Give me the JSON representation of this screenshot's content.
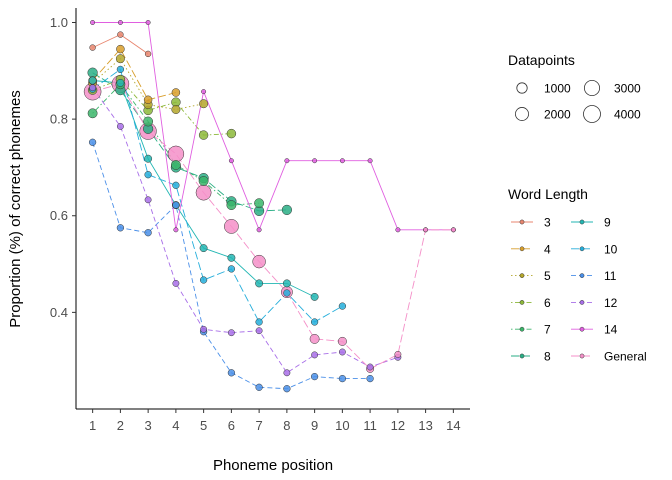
{
  "chart_data": {
    "type": "line",
    "title": "",
    "xlabel": "Phoneme position",
    "ylabel": "Proportion (%) of correct phonemes",
    "xlim": [
      0.4,
      14.6
    ],
    "ylim": [
      0.2,
      1.03
    ],
    "x_ticks": [
      "1",
      "2",
      "3",
      "4",
      "5",
      "6",
      "7",
      "8",
      "9",
      "10",
      "11",
      "12",
      "13",
      "14"
    ],
    "y_ticks": [
      "0.4",
      "0.6",
      "0.8",
      "1.0"
    ],
    "grid": false,
    "size_legend": {
      "title": "Datapoints",
      "entries": [
        {
          "label": "1000",
          "value": 1000
        },
        {
          "label": "2000",
          "value": 2000
        },
        {
          "label": "3000",
          "value": 3000
        },
        {
          "label": "4000",
          "value": 4000
        }
      ]
    },
    "color_legend": {
      "title": "Word Length",
      "placement": "right"
    },
    "series": [
      {
        "name": "3",
        "color": "#E8866F",
        "dash": "solid",
        "points": [
          {
            "x": 1,
            "y": 0.948,
            "n": 100
          },
          {
            "x": 2,
            "y": 0.975,
            "n": 100
          },
          {
            "x": 3,
            "y": 0.935,
            "n": 100
          }
        ]
      },
      {
        "name": "4",
        "color": "#D89E2A",
        "dash": "longdash",
        "points": [
          {
            "x": 1,
            "y": 0.88,
            "n": 400
          },
          {
            "x": 2,
            "y": 0.945,
            "n": 400
          },
          {
            "x": 3,
            "y": 0.84,
            "n": 400
          },
          {
            "x": 4,
            "y": 0.855,
            "n": 400
          }
        ]
      },
      {
        "name": "5",
        "color": "#B4A62A",
        "dash": "dotted",
        "points": [
          {
            "x": 1,
            "y": 0.875,
            "n": 500
          },
          {
            "x": 2,
            "y": 0.925,
            "n": 500
          },
          {
            "x": 3,
            "y": 0.83,
            "n": 500
          },
          {
            "x": 4,
            "y": 0.82,
            "n": 500
          },
          {
            "x": 5,
            "y": 0.832,
            "n": 500
          }
        ]
      },
      {
        "name": "6",
        "color": "#8CB83A",
        "dash": "dotdash",
        "points": [
          {
            "x": 1,
            "y": 0.86,
            "n": 600
          },
          {
            "x": 2,
            "y": 0.882,
            "n": 600
          },
          {
            "x": 3,
            "y": 0.818,
            "n": 600
          },
          {
            "x": 4,
            "y": 0.835,
            "n": 600
          },
          {
            "x": 5,
            "y": 0.767,
            "n": 600
          },
          {
            "x": 6,
            "y": 0.77,
            "n": 600
          }
        ]
      },
      {
        "name": "7",
        "color": "#3BB56A",
        "dash": "dotdash",
        "points": [
          {
            "x": 1,
            "y": 0.812,
            "n": 700
          },
          {
            "x": 2,
            "y": 0.872,
            "n": 700
          },
          {
            "x": 3,
            "y": 0.795,
            "n": 700
          },
          {
            "x": 4,
            "y": 0.705,
            "n": 700
          },
          {
            "x": 5,
            "y": 0.672,
            "n": 700
          },
          {
            "x": 6,
            "y": 0.622,
            "n": 700
          },
          {
            "x": 7,
            "y": 0.626,
            "n": 700
          }
        ]
      },
      {
        "name": "8",
        "color": "#2AAE85",
        "dash": "longdash",
        "points": [
          {
            "x": 1,
            "y": 0.896,
            "n": 800
          },
          {
            "x": 2,
            "y": 0.86,
            "n": 800
          },
          {
            "x": 3,
            "y": 0.78,
            "n": 800
          },
          {
            "x": 4,
            "y": 0.7,
            "n": 800
          },
          {
            "x": 5,
            "y": 0.678,
            "n": 800
          },
          {
            "x": 6,
            "y": 0.63,
            "n": 800
          },
          {
            "x": 7,
            "y": 0.61,
            "n": 800
          },
          {
            "x": 8,
            "y": 0.612,
            "n": 800
          }
        ]
      },
      {
        "name": "9",
        "color": "#22B6B3",
        "dash": "solid",
        "points": [
          {
            "x": 1,
            "y": 0.88,
            "n": 300
          },
          {
            "x": 2,
            "y": 0.875,
            "n": 300
          },
          {
            "x": 3,
            "y": 0.718,
            "n": 300
          },
          {
            "x": 4,
            "y": 0.622,
            "n": 300
          },
          {
            "x": 5,
            "y": 0.533,
            "n": 300
          },
          {
            "x": 6,
            "y": 0.513,
            "n": 300
          },
          {
            "x": 7,
            "y": 0.46,
            "n": 300
          },
          {
            "x": 8,
            "y": 0.46,
            "n": 300
          },
          {
            "x": 9,
            "y": 0.432,
            "n": 300
          }
        ]
      },
      {
        "name": "10",
        "color": "#25AEDB",
        "dash": "longdash",
        "points": [
          {
            "x": 1,
            "y": 0.862,
            "n": 200
          },
          {
            "x": 2,
            "y": 0.903,
            "n": 200
          },
          {
            "x": 3,
            "y": 0.685,
            "n": 200
          },
          {
            "x": 4,
            "y": 0.663,
            "n": 200
          },
          {
            "x": 5,
            "y": 0.467,
            "n": 200
          },
          {
            "x": 6,
            "y": 0.49,
            "n": 200
          },
          {
            "x": 7,
            "y": 0.38,
            "n": 200
          },
          {
            "x": 8,
            "y": 0.44,
            "n": 200
          },
          {
            "x": 9,
            "y": 0.38,
            "n": 200
          },
          {
            "x": 10,
            "y": 0.413,
            "n": 200
          }
        ]
      },
      {
        "name": "11",
        "color": "#4A8FE8",
        "dash": "dashed",
        "points": [
          {
            "x": 1,
            "y": 0.752,
            "n": 200
          },
          {
            "x": 2,
            "y": 0.575,
            "n": 200
          },
          {
            "x": 3,
            "y": 0.565,
            "n": 200
          },
          {
            "x": 4,
            "y": 0.622,
            "n": 200
          },
          {
            "x": 5,
            "y": 0.36,
            "n": 200
          },
          {
            "x": 6,
            "y": 0.275,
            "n": 200
          },
          {
            "x": 7,
            "y": 0.245,
            "n": 200
          },
          {
            "x": 8,
            "y": 0.242,
            "n": 200
          },
          {
            "x": 9,
            "y": 0.267,
            "n": 200
          },
          {
            "x": 10,
            "y": 0.263,
            "n": 200
          },
          {
            "x": 11,
            "y": 0.263,
            "n": 200
          }
        ]
      },
      {
        "name": "12",
        "color": "#A86EE8",
        "dash": "dashed",
        "points": [
          {
            "x": 1,
            "y": 0.865,
            "n": 150
          },
          {
            "x": 2,
            "y": 0.785,
            "n": 150
          },
          {
            "x": 3,
            "y": 0.633,
            "n": 150
          },
          {
            "x": 4,
            "y": 0.46,
            "n": 150
          },
          {
            "x": 5,
            "y": 0.365,
            "n": 150
          },
          {
            "x": 6,
            "y": 0.358,
            "n": 150
          },
          {
            "x": 7,
            "y": 0.362,
            "n": 150
          },
          {
            "x": 8,
            "y": 0.275,
            "n": 150
          },
          {
            "x": 9,
            "y": 0.312,
            "n": 150
          },
          {
            "x": 10,
            "y": 0.318,
            "n": 150
          },
          {
            "x": 11,
            "y": 0.287,
            "n": 150
          },
          {
            "x": 12,
            "y": 0.307,
            "n": 150
          }
        ]
      },
      {
        "name": "14",
        "color": "#E05FE0",
        "dash": "solid",
        "points": [
          {
            "x": 1,
            "y": 1.0,
            "n": 10
          },
          {
            "x": 2,
            "y": 1.0,
            "n": 10
          },
          {
            "x": 3,
            "y": 1.0,
            "n": 10
          },
          {
            "x": 4,
            "y": 0.571,
            "n": 10
          },
          {
            "x": 5,
            "y": 0.857,
            "n": 10
          },
          {
            "x": 6,
            "y": 0.714,
            "n": 10
          },
          {
            "x": 7,
            "y": 0.571,
            "n": 10
          },
          {
            "x": 8,
            "y": 0.714,
            "n": 10
          },
          {
            "x": 9,
            "y": 0.714,
            "n": 10
          },
          {
            "x": 10,
            "y": 0.714,
            "n": 10
          },
          {
            "x": 11,
            "y": 0.714,
            "n": 10
          },
          {
            "x": 12,
            "y": 0.571,
            "n": 10
          },
          {
            "x": 13,
            "y": 0.571,
            "n": 10
          },
          {
            "x": 14,
            "y": 0.571,
            "n": 10
          }
        ]
      },
      {
        "name": "General",
        "color": "#F48FC8",
        "dash": "longdash",
        "points": [
          {
            "x": 1,
            "y": 0.857,
            "n": 4000
          },
          {
            "x": 2,
            "y": 0.873,
            "n": 4000
          },
          {
            "x": 3,
            "y": 0.775,
            "n": 3800
          },
          {
            "x": 4,
            "y": 0.728,
            "n": 3400
          },
          {
            "x": 5,
            "y": 0.648,
            "n": 3000
          },
          {
            "x": 6,
            "y": 0.578,
            "n": 2500
          },
          {
            "x": 7,
            "y": 0.505,
            "n": 1900
          },
          {
            "x": 8,
            "y": 0.442,
            "n": 1300
          },
          {
            "x": 9,
            "y": 0.345,
            "n": 700
          },
          {
            "x": 10,
            "y": 0.34,
            "n": 500
          },
          {
            "x": 11,
            "y": 0.283,
            "n": 300
          },
          {
            "x": 12,
            "y": 0.313,
            "n": 150
          },
          {
            "x": 13,
            "y": 0.571,
            "n": 10
          },
          {
            "x": 14,
            "y": 0.571,
            "n": 10
          }
        ]
      }
    ]
  }
}
